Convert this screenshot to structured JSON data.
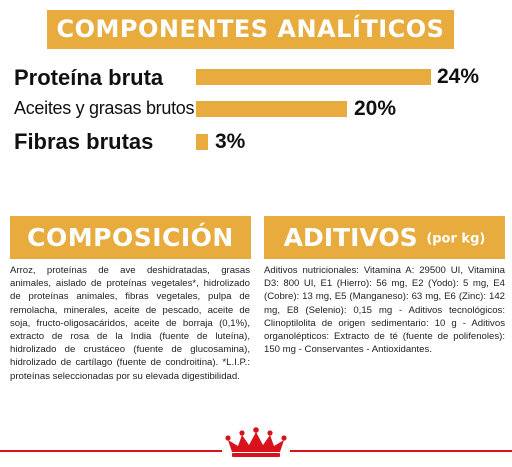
{
  "analytics": {
    "title": "COMPONENTES ANALÍTICOS",
    "rows": [
      {
        "label": "Proteína bruta",
        "value": 24,
        "value_text": "24%"
      },
      {
        "label": "Aceites y grasas brutos",
        "value": 20,
        "value_text": "20%"
      },
      {
        "label": "Fibras brutas",
        "value": 3,
        "value_text": "3%"
      }
    ]
  },
  "composition": {
    "title": "COMPOSICIÓN",
    "text": "Arroz, proteínas de ave deshidratadas, grasas animales, aislado de proteínas vegetales*, hidrolizado de proteínas animales, fibras vegetales, pulpa de remolacha, minerales, aceite de pescado, aceite de soja, fructo-oligosacáridos, aceite de borraja (0,1%), extracto de rosa de la India (fuente de luteína), hidrolizado de crustáceo (fuente de glucosamina), hidrolizado de cartílago (fuente de condroitina). *L.I.P.: proteínas seleccionadas por su elevada digestibilidad."
  },
  "additives": {
    "title": "ADITIVOS",
    "subtitle": "(por kg)",
    "text": "Aditivos nutricionales: Vitamina A: 29500 UI, Vitamina D3: 800 UI, E1 (Hierro): 56 mg, E2 (Yodo): 5 mg, E4 (Cobre): 13 mg, E5 (Manganeso): 63 mg, E6 (Zinc): 142 mg, E8 (Selenio): 0,15 mg - Aditivos tecnológicos: Clinoptilolita de origen sedimentario: 10 g - Aditivos organolépticos: Extracto de té (fuente de polifenoles): 150 mg - Conservantes - Antioxidantes."
  },
  "colors": {
    "accent": "#e8ac3e",
    "brand_red": "#d9131c"
  },
  "footer": {
    "logo_icon": "royal-canin-crown-icon"
  }
}
